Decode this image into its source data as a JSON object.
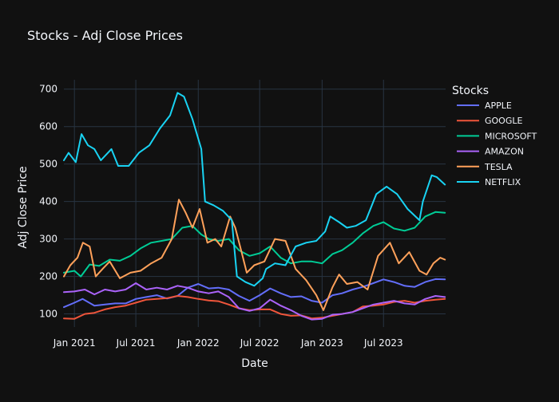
{
  "chart_data": {
    "type": "line",
    "title": "Stocks - Adj Close Prices",
    "xlabel": "Date",
    "ylabel": "Adj Close Price",
    "xlim": [
      "2020-12-01",
      "2023-12-31"
    ],
    "ylim": [
      65,
      725
    ],
    "x_ticks": [
      {
        "date": "2021-01-01",
        "label": "Jan 2021"
      },
      {
        "date": "2021-07-01",
        "label": "Jul 2021"
      },
      {
        "date": "2022-01-01",
        "label": "Jan 2022"
      },
      {
        "date": "2022-07-01",
        "label": "Jul 2022"
      },
      {
        "date": "2023-01-01",
        "label": "Jan 2023"
      },
      {
        "date": "2023-07-01",
        "label": "Jul 2023"
      }
    ],
    "y_ticks": [
      100,
      200,
      300,
      400,
      500,
      600,
      700
    ],
    "grid": true,
    "legend": {
      "title": "Stocks",
      "position": "top-right"
    },
    "series": [
      {
        "name": "APPLE",
        "color": "#636efa",
        "points": [
          [
            "2020-12-01",
            118
          ],
          [
            "2021-01-01",
            130
          ],
          [
            "2021-01-25",
            140
          ],
          [
            "2021-03-01",
            122
          ],
          [
            "2021-04-01",
            125
          ],
          [
            "2021-05-01",
            128
          ],
          [
            "2021-06-01",
            128
          ],
          [
            "2021-07-01",
            140
          ],
          [
            "2021-08-01",
            145
          ],
          [
            "2021-09-01",
            150
          ],
          [
            "2021-10-01",
            141
          ],
          [
            "2021-11-01",
            148
          ],
          [
            "2021-12-01",
            170
          ],
          [
            "2022-01-01",
            180
          ],
          [
            "2022-02-01",
            168
          ],
          [
            "2022-03-01",
            170
          ],
          [
            "2022-04-01",
            165
          ],
          [
            "2022-05-01",
            148
          ],
          [
            "2022-06-01",
            135
          ],
          [
            "2022-07-01",
            150
          ],
          [
            "2022-08-01",
            168
          ],
          [
            "2022-09-01",
            155
          ],
          [
            "2022-10-01",
            145
          ],
          [
            "2022-11-01",
            147
          ],
          [
            "2022-12-01",
            135
          ],
          [
            "2023-01-01",
            130
          ],
          [
            "2023-02-01",
            150
          ],
          [
            "2023-03-01",
            155
          ],
          [
            "2023-04-01",
            165
          ],
          [
            "2023-05-01",
            172
          ],
          [
            "2023-06-01",
            182
          ],
          [
            "2023-07-01",
            192
          ],
          [
            "2023-08-01",
            185
          ],
          [
            "2023-09-01",
            175
          ],
          [
            "2023-10-01",
            172
          ],
          [
            "2023-11-01",
            185
          ],
          [
            "2023-12-01",
            193
          ],
          [
            "2023-12-29",
            192
          ]
        ]
      },
      {
        "name": "GOOGLE",
        "color": "#ef553b",
        "points": [
          [
            "2020-12-01",
            88
          ],
          [
            "2021-01-01",
            87
          ],
          [
            "2021-02-01",
            100
          ],
          [
            "2021-03-01",
            103
          ],
          [
            "2021-04-01",
            112
          ],
          [
            "2021-05-01",
            118
          ],
          [
            "2021-06-01",
            122
          ],
          [
            "2021-07-01",
            130
          ],
          [
            "2021-08-01",
            138
          ],
          [
            "2021-09-01",
            140
          ],
          [
            "2021-10-01",
            142
          ],
          [
            "2021-11-01",
            148
          ],
          [
            "2021-12-01",
            145
          ],
          [
            "2022-01-01",
            140
          ],
          [
            "2022-02-01",
            136
          ],
          [
            "2022-03-01",
            134
          ],
          [
            "2022-04-01",
            125
          ],
          [
            "2022-05-01",
            115
          ],
          [
            "2022-06-01",
            110
          ],
          [
            "2022-07-01",
            112
          ],
          [
            "2022-08-01",
            112
          ],
          [
            "2022-09-01",
            100
          ],
          [
            "2022-10-01",
            95
          ],
          [
            "2022-11-01",
            96
          ],
          [
            "2022-12-01",
            88
          ],
          [
            "2023-01-01",
            90
          ],
          [
            "2023-02-01",
            95
          ],
          [
            "2023-03-01",
            100
          ],
          [
            "2023-04-01",
            105
          ],
          [
            "2023-05-01",
            120
          ],
          [
            "2023-06-01",
            122
          ],
          [
            "2023-07-01",
            125
          ],
          [
            "2023-08-01",
            132
          ],
          [
            "2023-09-01",
            135
          ],
          [
            "2023-10-01",
            130
          ],
          [
            "2023-11-01",
            135
          ],
          [
            "2023-12-01",
            138
          ],
          [
            "2023-12-29",
            140
          ]
        ]
      },
      {
        "name": "MICROSOFT",
        "color": "#00cc96",
        "points": [
          [
            "2020-12-01",
            210
          ],
          [
            "2021-01-01",
            215
          ],
          [
            "2021-01-20",
            200
          ],
          [
            "2021-02-15",
            232
          ],
          [
            "2021-03-15",
            228
          ],
          [
            "2021-04-15",
            245
          ],
          [
            "2021-05-15",
            242
          ],
          [
            "2021-06-15",
            255
          ],
          [
            "2021-07-15",
            275
          ],
          [
            "2021-08-15",
            290
          ],
          [
            "2021-09-15",
            295
          ],
          [
            "2021-10-15",
            300
          ],
          [
            "2021-11-15",
            330
          ],
          [
            "2021-12-15",
            335
          ],
          [
            "2022-01-10",
            312
          ],
          [
            "2022-02-01",
            300
          ],
          [
            "2022-03-01",
            295
          ],
          [
            "2022-04-01",
            300
          ],
          [
            "2022-05-01",
            270
          ],
          [
            "2022-06-01",
            255
          ],
          [
            "2022-07-01",
            262
          ],
          [
            "2022-08-01",
            280
          ],
          [
            "2022-09-01",
            250
          ],
          [
            "2022-10-01",
            235
          ],
          [
            "2022-11-01",
            240
          ],
          [
            "2022-12-01",
            240
          ],
          [
            "2023-01-01",
            235
          ],
          [
            "2023-02-01",
            260
          ],
          [
            "2023-03-01",
            270
          ],
          [
            "2023-04-01",
            290
          ],
          [
            "2023-05-01",
            315
          ],
          [
            "2023-06-01",
            335
          ],
          [
            "2023-07-01",
            345
          ],
          [
            "2023-08-01",
            328
          ],
          [
            "2023-09-01",
            322
          ],
          [
            "2023-10-01",
            330
          ],
          [
            "2023-11-01",
            360
          ],
          [
            "2023-12-01",
            372
          ],
          [
            "2023-12-29",
            370
          ]
        ]
      },
      {
        "name": "AMAZON",
        "color": "#ab63fa",
        "points": [
          [
            "2020-12-01",
            158
          ],
          [
            "2021-01-01",
            160
          ],
          [
            "2021-02-01",
            165
          ],
          [
            "2021-03-01",
            152
          ],
          [
            "2021-04-01",
            165
          ],
          [
            "2021-05-01",
            160
          ],
          [
            "2021-06-01",
            165
          ],
          [
            "2021-07-01",
            182
          ],
          [
            "2021-08-01",
            165
          ],
          [
            "2021-09-01",
            170
          ],
          [
            "2021-10-01",
            165
          ],
          [
            "2021-11-01",
            175
          ],
          [
            "2021-12-01",
            170
          ],
          [
            "2022-01-01",
            160
          ],
          [
            "2022-02-01",
            155
          ],
          [
            "2022-03-01",
            160
          ],
          [
            "2022-04-01",
            145
          ],
          [
            "2022-05-01",
            115
          ],
          [
            "2022-06-01",
            108
          ],
          [
            "2022-07-01",
            115
          ],
          [
            "2022-08-01",
            138
          ],
          [
            "2022-09-01",
            122
          ],
          [
            "2022-10-01",
            110
          ],
          [
            "2022-11-01",
            95
          ],
          [
            "2022-12-01",
            85
          ],
          [
            "2023-01-01",
            87
          ],
          [
            "2023-02-01",
            98
          ],
          [
            "2023-03-01",
            100
          ],
          [
            "2023-04-01",
            105
          ],
          [
            "2023-05-01",
            115
          ],
          [
            "2023-06-01",
            125
          ],
          [
            "2023-07-01",
            130
          ],
          [
            "2023-08-01",
            135
          ],
          [
            "2023-09-01",
            128
          ],
          [
            "2023-10-01",
            125
          ],
          [
            "2023-11-01",
            140
          ],
          [
            "2023-12-01",
            148
          ],
          [
            "2023-12-29",
            145
          ]
        ]
      },
      {
        "name": "TESLA",
        "color": "#ffa15a",
        "points": [
          [
            "2020-12-01",
            200
          ],
          [
            "2020-12-20",
            230
          ],
          [
            "2021-01-10",
            250
          ],
          [
            "2021-01-26",
            290
          ],
          [
            "2021-02-15",
            280
          ],
          [
            "2021-03-05",
            200
          ],
          [
            "2021-03-25",
            220
          ],
          [
            "2021-04-15",
            240
          ],
          [
            "2021-05-15",
            195
          ],
          [
            "2021-06-15",
            210
          ],
          [
            "2021-07-15",
            215
          ],
          [
            "2021-08-15",
            235
          ],
          [
            "2021-09-15",
            250
          ],
          [
            "2021-10-15",
            300
          ],
          [
            "2021-11-05",
            405
          ],
          [
            "2021-11-25",
            370
          ],
          [
            "2021-12-15",
            330
          ],
          [
            "2022-01-05",
            380
          ],
          [
            "2022-01-28",
            290
          ],
          [
            "2022-02-20",
            300
          ],
          [
            "2022-03-10",
            280
          ],
          [
            "2022-04-05",
            360
          ],
          [
            "2022-04-20",
            330
          ],
          [
            "2022-05-10",
            260
          ],
          [
            "2022-05-24",
            210
          ],
          [
            "2022-06-15",
            230
          ],
          [
            "2022-07-15",
            240
          ],
          [
            "2022-08-15",
            300
          ],
          [
            "2022-09-15",
            295
          ],
          [
            "2022-10-15",
            220
          ],
          [
            "2022-11-15",
            190
          ],
          [
            "2022-12-15",
            150
          ],
          [
            "2023-01-05",
            110
          ],
          [
            "2023-01-31",
            170
          ],
          [
            "2023-02-20",
            205
          ],
          [
            "2023-03-15",
            180
          ],
          [
            "2023-04-15",
            185
          ],
          [
            "2023-05-15",
            165
          ],
          [
            "2023-06-15",
            255
          ],
          [
            "2023-07-20",
            290
          ],
          [
            "2023-08-15",
            235
          ],
          [
            "2023-09-15",
            265
          ],
          [
            "2023-10-15",
            215
          ],
          [
            "2023-11-05",
            205
          ],
          [
            "2023-11-25",
            235
          ],
          [
            "2023-12-15",
            250
          ],
          [
            "2023-12-29",
            245
          ]
        ]
      },
      {
        "name": "NETFLIX",
        "color": "#19d3f3",
        "points": [
          [
            "2020-12-01",
            510
          ],
          [
            "2020-12-15",
            530
          ],
          [
            "2021-01-05",
            505
          ],
          [
            "2021-01-22",
            580
          ],
          [
            "2021-02-10",
            550
          ],
          [
            "2021-03-01",
            540
          ],
          [
            "2021-03-20",
            510
          ],
          [
            "2021-04-20",
            540
          ],
          [
            "2021-05-10",
            495
          ],
          [
            "2021-06-10",
            495
          ],
          [
            "2021-07-10",
            530
          ],
          [
            "2021-08-10",
            550
          ],
          [
            "2021-09-10",
            595
          ],
          [
            "2021-10-10",
            630
          ],
          [
            "2021-11-01",
            690
          ],
          [
            "2021-11-20",
            680
          ],
          [
            "2021-12-15",
            620
          ],
          [
            "2022-01-10",
            540
          ],
          [
            "2022-01-21",
            400
          ],
          [
            "2022-02-15",
            390
          ],
          [
            "2022-03-15",
            375
          ],
          [
            "2022-04-10",
            350
          ],
          [
            "2022-04-25",
            200
          ],
          [
            "2022-05-20",
            185
          ],
          [
            "2022-06-15",
            175
          ],
          [
            "2022-07-10",
            195
          ],
          [
            "2022-07-20",
            220
          ],
          [
            "2022-08-15",
            235
          ],
          [
            "2022-09-15",
            230
          ],
          [
            "2022-10-15",
            280
          ],
          [
            "2022-11-15",
            290
          ],
          [
            "2022-12-15",
            295
          ],
          [
            "2023-01-10",
            320
          ],
          [
            "2023-01-25",
            360
          ],
          [
            "2023-02-20",
            345
          ],
          [
            "2023-03-15",
            330
          ],
          [
            "2023-04-10",
            335
          ],
          [
            "2023-05-10",
            350
          ],
          [
            "2023-06-10",
            420
          ],
          [
            "2023-07-10",
            440
          ],
          [
            "2023-08-10",
            420
          ],
          [
            "2023-09-10",
            380
          ],
          [
            "2023-10-15",
            350
          ],
          [
            "2023-10-25",
            400
          ],
          [
            "2023-11-20",
            470
          ],
          [
            "2023-12-05",
            465
          ],
          [
            "2023-12-29",
            445
          ]
        ]
      }
    ]
  }
}
